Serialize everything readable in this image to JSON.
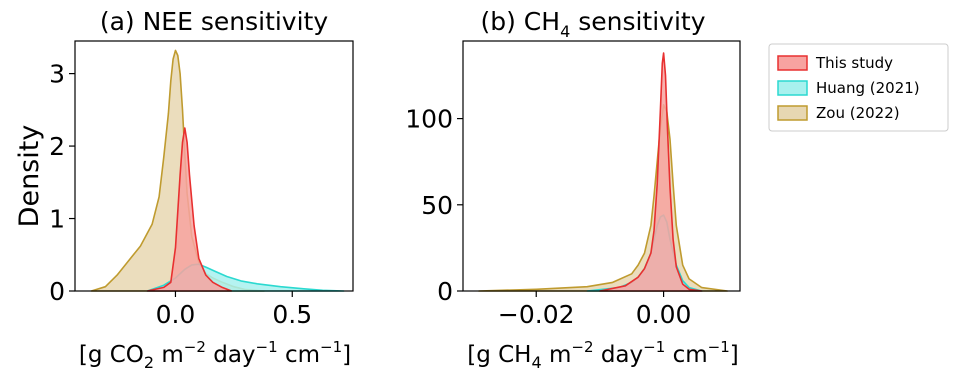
{
  "legend": {
    "placement": "outside-right",
    "entries": [
      {
        "label": "This study",
        "fill": "#f7a3a0",
        "stroke": "#e83030"
      },
      {
        "label": "Huang (2021)",
        "fill": "#a8f1ee",
        "stroke": "#2bd9d0"
      },
      {
        "label": "Zou (2022)",
        "fill": "#e7d7b2",
        "stroke": "#bf9b2f"
      }
    ]
  },
  "chart_data": [
    {
      "type": "area",
      "title": {
        "prefix": "(a) NEE sensitivity",
        "sub": "",
        "suffix": ""
      },
      "ylabel": "Density",
      "xlabel": {
        "parts": [
          "[g CO",
          "2",
          " m",
          "−2",
          " day",
          "−1",
          " cm",
          "−1",
          "]"
        ]
      },
      "xlim": [
        -0.43,
        0.76
      ],
      "ylim": [
        0,
        3.45
      ],
      "xticks": [
        {
          "value": 0.0,
          "label": "0.0"
        },
        {
          "value": 0.5,
          "label": "0.5"
        }
      ],
      "yticks": [
        {
          "value": 0,
          "label": "0"
        },
        {
          "value": 1,
          "label": "1"
        },
        {
          "value": 2,
          "label": "2"
        },
        {
          "value": 3,
          "label": "3"
        }
      ],
      "series": [
        {
          "name": "Zou (2022)",
          "fill": "#e7d7b2",
          "stroke": "#bf9b2f",
          "x": [
            -0.36,
            -0.3,
            -0.25,
            -0.2,
            -0.15,
            -0.1,
            -0.07,
            -0.05,
            -0.03,
            -0.02,
            -0.01,
            0.0,
            0.01,
            0.02,
            0.03,
            0.04,
            0.05,
            0.07,
            0.1,
            0.13,
            0.16,
            0.2,
            0.25,
            0.3,
            0.38
          ],
          "y": [
            0,
            0.06,
            0.22,
            0.42,
            0.62,
            0.92,
            1.3,
            1.85,
            2.45,
            2.9,
            3.2,
            3.32,
            3.25,
            3.0,
            2.5,
            1.9,
            1.35,
            0.75,
            0.4,
            0.24,
            0.18,
            0.12,
            0.06,
            0.02,
            0
          ]
        },
        {
          "name": "Huang (2021)",
          "fill": "#a8f1ee",
          "stroke": "#2bd9d0",
          "x": [
            -0.12,
            -0.05,
            0.0,
            0.04,
            0.07,
            0.1,
            0.13,
            0.17,
            0.22,
            0.28,
            0.35,
            0.45,
            0.55,
            0.63,
            0.72
          ],
          "y": [
            0,
            0.08,
            0.18,
            0.3,
            0.36,
            0.37,
            0.33,
            0.27,
            0.2,
            0.14,
            0.1,
            0.06,
            0.03,
            0.01,
            0
          ]
        },
        {
          "name": "This study",
          "fill": "#f7a3a0",
          "stroke": "#e83030",
          "x": [
            -0.12,
            -0.05,
            -0.02,
            0.0,
            0.01,
            0.02,
            0.03,
            0.04,
            0.05,
            0.06,
            0.08,
            0.1,
            0.13,
            0.16,
            0.2,
            0.24
          ],
          "y": [
            0,
            0.05,
            0.12,
            0.6,
            1.1,
            1.6,
            2.05,
            2.25,
            2.05,
            1.6,
            0.9,
            0.45,
            0.22,
            0.12,
            0.05,
            0
          ]
        }
      ]
    },
    {
      "type": "area",
      "title": {
        "prefix": "(b) CH",
        "sub": "4",
        "suffix": " sensitivity"
      },
      "ylabel": "",
      "xlabel": {
        "parts": [
          "[g CH",
          "4",
          " m",
          "−2",
          " day",
          "−1",
          " cm",
          "−1",
          "]"
        ]
      },
      "xlim": [
        -0.0315,
        0.012
      ],
      "ylim": [
        0,
        145
      ],
      "xticks": [
        {
          "value": -0.02,
          "label": "−0.02"
        },
        {
          "value": 0.0,
          "label": "0.00"
        }
      ],
      "yticks": [
        {
          "value": 0,
          "label": "0"
        },
        {
          "value": 50,
          "label": "50"
        },
        {
          "value": 100,
          "label": "100"
        }
      ],
      "series": [
        {
          "name": "Zou (2022)",
          "fill": "#e7d7b2",
          "stroke": "#bf9b2f",
          "x": [
            -0.029,
            -0.02,
            -0.012,
            -0.008,
            -0.005,
            -0.004,
            -0.003,
            -0.002,
            -0.0015,
            -0.001,
            -0.0005,
            0.0,
            0.0005,
            0.001,
            0.0015,
            0.002,
            0.003,
            0.004,
            0.006,
            0.01
          ],
          "y": [
            0,
            1,
            2.5,
            5,
            10,
            15,
            22,
            38,
            55,
            75,
            95,
            108,
            104,
            88,
            62,
            38,
            15,
            7,
            2,
            0
          ]
        },
        {
          "name": "Huang (2021)",
          "fill": "#a8f1ee",
          "stroke": "#2bd9d0",
          "x": [
            -0.012,
            -0.007,
            -0.005,
            -0.004,
            -0.003,
            -0.002,
            -0.0015,
            -0.001,
            -0.0005,
            0.0,
            0.0005,
            0.001,
            0.002,
            0.003,
            0.004,
            0.006
          ],
          "y": [
            0,
            2,
            5,
            8,
            13,
            22,
            30,
            38,
            43,
            44,
            40,
            30,
            15,
            6,
            2,
            0
          ]
        },
        {
          "name": "This study",
          "fill": "#f7a3a0",
          "stroke": "#e83030",
          "x": [
            -0.01,
            -0.006,
            -0.004,
            -0.003,
            -0.002,
            -0.0015,
            -0.001,
            -0.0005,
            -0.0002,
            0.0,
            0.0003,
            0.0006,
            0.001,
            0.0015,
            0.002,
            0.003,
            0.004,
            0.006
          ],
          "y": [
            0,
            3,
            8,
            13,
            22,
            35,
            62,
            105,
            132,
            138,
            125,
            95,
            60,
            30,
            14,
            4,
            1,
            0
          ]
        }
      ]
    }
  ]
}
